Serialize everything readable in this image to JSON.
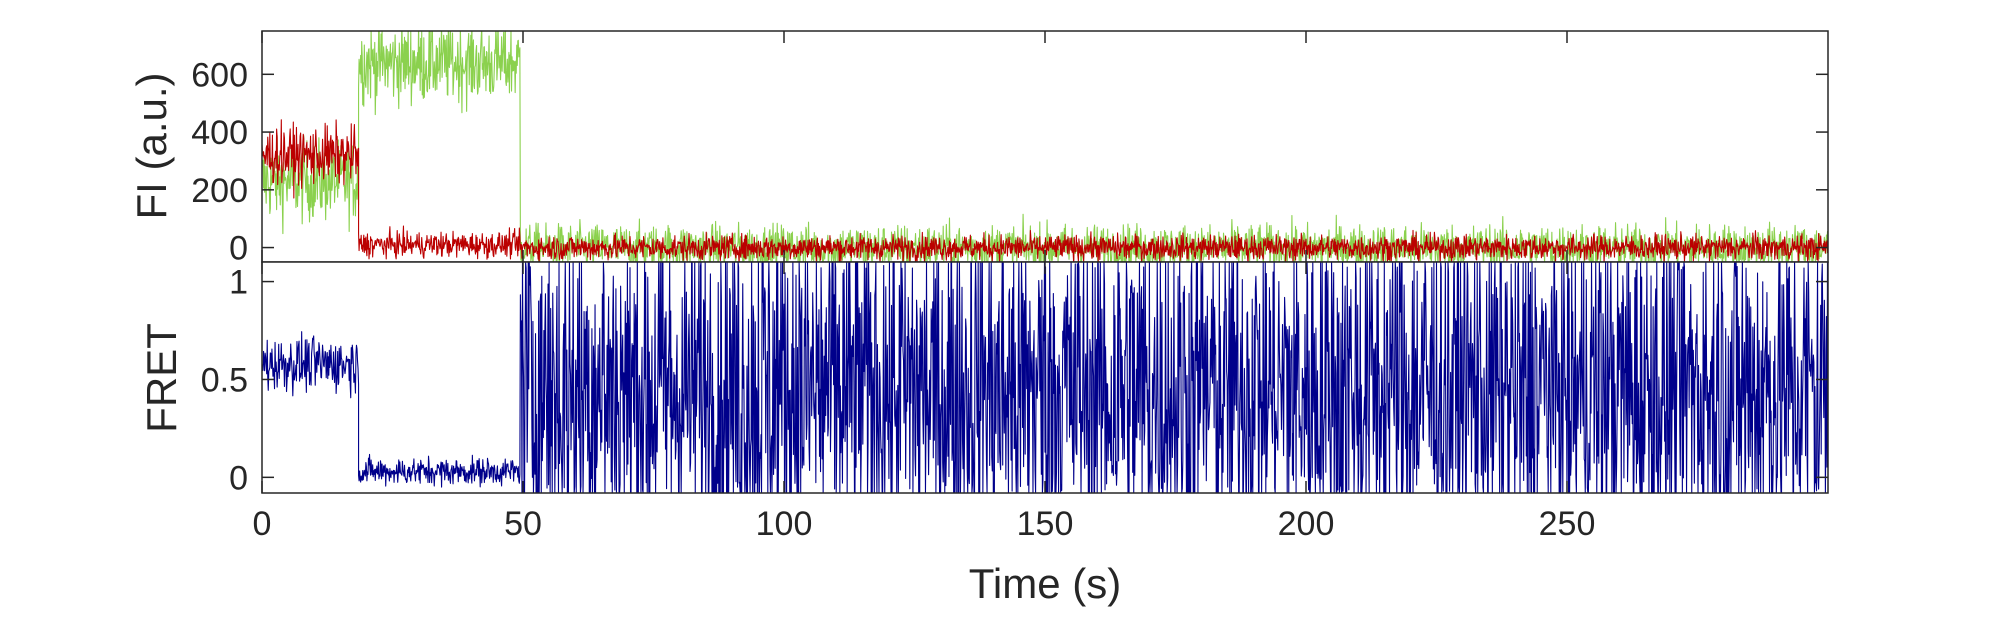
{
  "chart_data": [
    {
      "type": "line",
      "panel": "top",
      "ylabel": "FI (a.u.)",
      "xlabel": "",
      "xlim": [
        0,
        300
      ],
      "ylim": [
        -50,
        750
      ],
      "yticks": [
        0,
        200,
        400,
        600
      ],
      "ytick_labels": [
        "0",
        "200",
        "400",
        "600"
      ],
      "x_tick_labels_shown": false,
      "legend": "none",
      "grid": false,
      "series": [
        {
          "color": "#8BD14E",
          "segments": [
            {
              "x_start": 0,
              "x_end": 18.5,
              "mean": 230,
              "noise": 70
            },
            {
              "x_start": 18.5,
              "x_end": 49.5,
              "mean": 640,
              "noise": 70,
              "clipped_at": 750
            },
            {
              "x_start": 49.5,
              "x_end": 300,
              "mean": 0,
              "noise": 40
            }
          ]
        },
        {
          "color": "#BB0000",
          "segments": [
            {
              "x_start": 0,
              "x_end": 18.5,
              "mean": 320,
              "noise": 50
            },
            {
              "x_start": 18.5,
              "x_end": 49.5,
              "mean": 10,
              "noise": 22
            },
            {
              "x_start": 49.5,
              "x_end": 300,
              "mean": 0,
              "noise": 22
            }
          ]
        }
      ]
    },
    {
      "type": "line",
      "panel": "bottom",
      "ylabel": "FRET",
      "xlabel": "Time (s)",
      "xlim": [
        0,
        300
      ],
      "ylim": [
        -0.08,
        1.1
      ],
      "yticks": [
        0,
        0.5,
        1
      ],
      "ytick_labels": [
        "0",
        "0.5",
        "1"
      ],
      "xticks": [
        0,
        50,
        100,
        150,
        200,
        250
      ],
      "xtick_labels": [
        "0",
        "50",
        "100",
        "150",
        "200",
        "250"
      ],
      "legend": "none",
      "grid": false,
      "series": [
        {
          "color": "#00008B",
          "segments": [
            {
              "x_start": 0,
              "x_end": 18.5,
              "mean": 0.58,
              "noise": 0.07
            },
            {
              "x_start": 18.5,
              "x_end": 49.5,
              "mean": 0.03,
              "noise": 0.035
            },
            {
              "x_start": 49.5,
              "x_end": 300,
              "mean": 0.45,
              "noise": 0.5,
              "clipped_to_ylim": true
            }
          ]
        }
      ]
    }
  ]
}
